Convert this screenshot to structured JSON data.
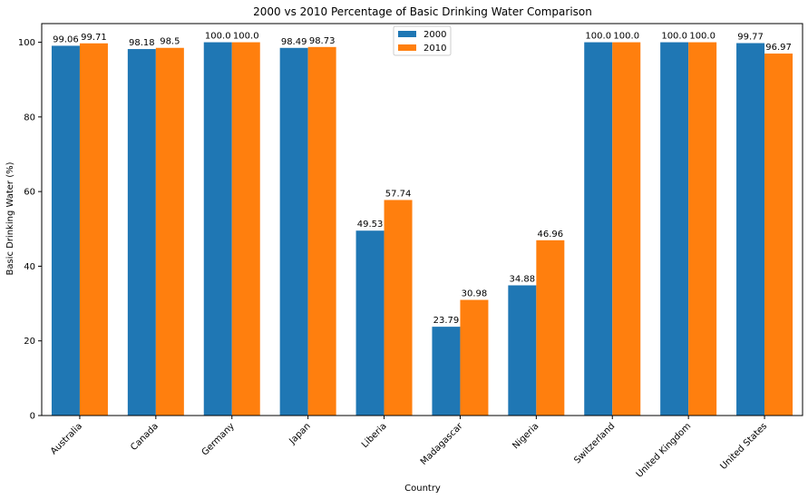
{
  "chart_data": {
    "type": "bar",
    "title": "2000 vs 2010 Percentage of Basic Drinking Water Comparison",
    "xlabel": "Country",
    "ylabel": "Basic Drinking Water (%)",
    "categories": [
      "Australia",
      "Canada",
      "Germany",
      "Japan",
      "Liberia",
      "Madagascar",
      "Nigeria",
      "Switzerland",
      "United Kingdom",
      "United States"
    ],
    "series": [
      {
        "name": "2000",
        "color": "#1f77b4",
        "values": [
          99.06,
          98.18,
          100.0,
          98.49,
          49.53,
          23.79,
          34.88,
          100.0,
          100.0,
          99.77
        ]
      },
      {
        "name": "2010",
        "color": "#ff7f0e",
        "values": [
          99.71,
          98.5,
          100.0,
          98.73,
          57.74,
          30.98,
          46.96,
          100.0,
          100.0,
          96.97
        ]
      }
    ],
    "data_labels": [
      [
        "99.06",
        "98.18",
        "100.0",
        "98.49",
        "49.53",
        "23.79",
        "34.88",
        "100.0",
        "100.0",
        "99.77"
      ],
      [
        "99.71",
        "98.5",
        "100.0",
        "98.73",
        "57.74",
        "30.98",
        "46.96",
        "100.0",
        "100.0",
        "96.97"
      ]
    ],
    "ylim": [
      0,
      105
    ],
    "yticks": [
      "0",
      "20",
      "40",
      "60",
      "80",
      "100"
    ],
    "xtick_rotation": 45,
    "grid": false,
    "legend": "top-center"
  }
}
